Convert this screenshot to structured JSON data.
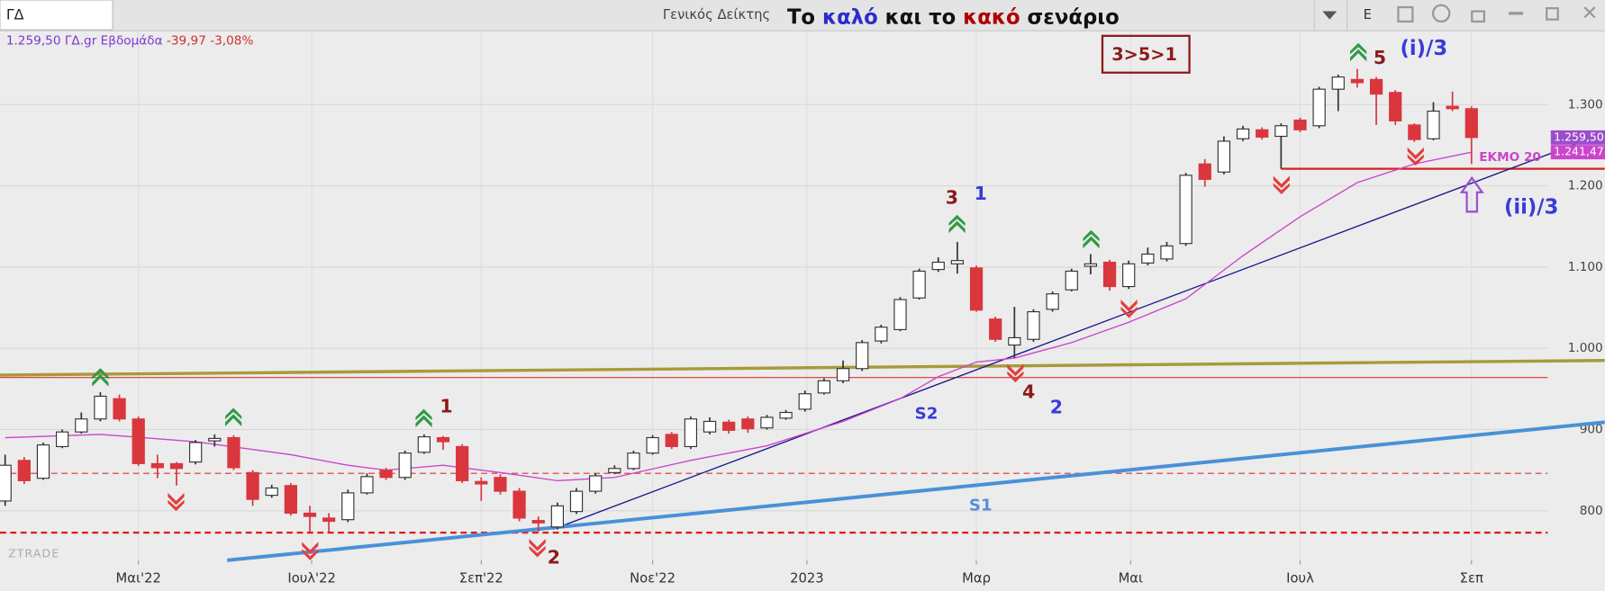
{
  "header": {
    "symbol": "ΓΔ",
    "name": "Γενικός Δείκτης",
    "button": "E"
  },
  "watermark": "ZTRADE",
  "chart_data": {
    "type": "candlestick",
    "title_parts": [
      {
        "text": "Το ",
        "color": "#111111"
      },
      {
        "text": "καλό",
        "color": "#2b2bcc"
      },
      {
        "text": " και το ",
        "color": "#111111"
      },
      {
        "text": "κακό",
        "color": "#b00000"
      },
      {
        "text": " σενάριο",
        "color": "#111111"
      }
    ],
    "info": {
      "quote": "1.259,50 ΓΔ.gr Εβδομάδα",
      "change": "-39,97 -3,08%"
    },
    "x": [
      0,
      1,
      2,
      3,
      4,
      5,
      6,
      7,
      8,
      9,
      10,
      11,
      12,
      13,
      14,
      15,
      16,
      17,
      18,
      19,
      20,
      21,
      22,
      23,
      24,
      25,
      26,
      27,
      28,
      29,
      30,
      31,
      32,
      33,
      34,
      35,
      36,
      37,
      38,
      39,
      40,
      41,
      42,
      43,
      44,
      45,
      46,
      47,
      48,
      49,
      50,
      51,
      52,
      53,
      54,
      55,
      56,
      57,
      58,
      59,
      60,
      61,
      62,
      63,
      64,
      65,
      66,
      67,
      68,
      69,
      70,
      71,
      72,
      73,
      74,
      75,
      76,
      77
    ],
    "open": [
      812,
      862,
      840,
      879,
      897,
      913,
      938,
      913,
      858,
      858,
      860,
      886,
      890,
      847,
      819,
      831,
      797,
      791,
      789,
      822,
      850,
      841,
      872,
      890,
      879,
      836,
      841,
      824,
      788,
      780,
      799,
      824,
      847,
      852,
      871,
      894,
      879,
      897,
      909,
      913,
      902,
      914,
      925,
      945,
      960,
      975,
      1009,
      1023,
      1062,
      1097,
      1104,
      1099,
      1036,
      1004,
      1011,
      1048,
      1072,
      1101,
      1106,
      1076,
      1105,
      1110,
      1129,
      1227,
      1217,
      1258,
      1269,
      1261,
      1281,
      1274,
      1319,
      1331,
      1331,
      1315,
      1275,
      1258,
      1298,
      1295
    ],
    "high": [
      869,
      866,
      884,
      900,
      921,
      946,
      943,
      916,
      869,
      860,
      887,
      894,
      893,
      850,
      832,
      834,
      806,
      797,
      826,
      846,
      853,
      874,
      894,
      892,
      882,
      841,
      845,
      828,
      793,
      810,
      828,
      846,
      856,
      874,
      893,
      897,
      916,
      915,
      912,
      916,
      918,
      924,
      948,
      963,
      985,
      1010,
      1029,
      1063,
      1098,
      1112,
      1131,
      1102,
      1039,
      1051,
      1048,
      1070,
      1098,
      1116,
      1109,
      1108,
      1124,
      1131,
      1216,
      1233,
      1261,
      1274,
      1272,
      1277,
      1284,
      1322,
      1337,
      1344,
      1334,
      1318,
      1277,
      1303,
      1316,
      1298
    ],
    "low": [
      806,
      833,
      838,
      877,
      895,
      910,
      910,
      855,
      840,
      831,
      857,
      879,
      850,
      806,
      816,
      794,
      774,
      774,
      786,
      820,
      838,
      838,
      870,
      875,
      834,
      812,
      820,
      787,
      774,
      777,
      796,
      821,
      845,
      850,
      869,
      876,
      876,
      894,
      895,
      896,
      900,
      912,
      922,
      943,
      957,
      972,
      1006,
      1021,
      1060,
      1094,
      1092,
      1045,
      1008,
      988,
      1008,
      1045,
      1070,
      1091,
      1071,
      1073,
      1102,
      1107,
      1126,
      1199,
      1214,
      1255,
      1257,
      1221,
      1266,
      1271,
      1292,
      1321,
      1275,
      1275,
      1254,
      1256,
      1292,
      1227
    ],
    "close": [
      856,
      837,
      881,
      897,
      913,
      941,
      913,
      858,
      853,
      852,
      884,
      889,
      853,
      814,
      828,
      797,
      793,
      787,
      822,
      842,
      841,
      871,
      891,
      885,
      837,
      833,
      824,
      791,
      785,
      806,
      824,
      843,
      852,
      871,
      890,
      879,
      913,
      910,
      899,
      901,
      915,
      921,
      944,
      960,
      975,
      1007,
      1026,
      1060,
      1095,
      1106,
      1108,
      1047,
      1011,
      1013,
      1045,
      1067,
      1095,
      1104,
      1076,
      1104,
      1116,
      1126,
      1213,
      1208,
      1255,
      1270,
      1260,
      1274,
      1269,
      1319,
      1334,
      1327,
      1313,
      1280,
      1257,
      1292,
      1295,
      1259.5
    ],
    "close_label": "1.259,50",
    "up_color": "#ffffff",
    "down_color": "#d9363e",
    "outline_color": "#333333",
    "series": [
      {
        "name": "ΕΚΜΟ 20",
        "color": "#cc44cc",
        "x": [
          0,
          5,
          10,
          15,
          18,
          20,
          23,
          26,
          29,
          32,
          36,
          40,
          44,
          47,
          49,
          51,
          53,
          56,
          59,
          62,
          65,
          68,
          71,
          74,
          77
        ],
        "values": [
          890,
          894,
          885,
          869,
          856,
          850,
          856,
          847,
          837,
          841,
          862,
          880,
          910,
          938,
          965,
          983,
          988,
          1007,
          1032,
          1061,
          1114,
          1162,
          1204,
          1227,
          1241.47
        ],
        "last_label": "1.241,47"
      }
    ],
    "lines": [
      {
        "color": "#a89a3a",
        "width": 3,
        "dashed": false,
        "x": [
          -0.27,
          84
        ],
        "values": [
          967,
          985
        ]
      },
      {
        "color": "#e03030",
        "width": 1,
        "dashed": false,
        "x": [
          -0.27,
          81
        ],
        "values": [
          964,
          964
        ]
      },
      {
        "color": "#e03030",
        "width": 1,
        "dashed": true,
        "x": [
          -0.27,
          81
        ],
        "values": [
          846,
          846
        ]
      },
      {
        "color": "#e01818",
        "width": 2,
        "dashed": true,
        "x": [
          -0.27,
          81
        ],
        "values": [
          773,
          773
        ]
      },
      {
        "color": "#d62020",
        "width": 2,
        "dashed": false,
        "x": [
          67,
          84
        ],
        "values": [
          1221,
          1221
        ]
      },
      {
        "color": "#1a1a8c",
        "width": 1.2,
        "dashed": false,
        "x": [
          28.75,
          84
        ],
        "values": [
          777,
          1265
        ]
      },
      {
        "color": "#4a90d9",
        "width": 3.5,
        "dashed": false,
        "x": [
          11.66,
          84
        ],
        "values": [
          739,
          909
        ]
      }
    ],
    "annotations": [
      {
        "text": "1",
        "color": "#8b1a1a"
      },
      {
        "text": "2",
        "color": "#8b1a1a"
      },
      {
        "text": "3",
        "color": "#8b1a1a"
      },
      {
        "text": "1",
        "color": "#3a3adb"
      },
      {
        "text": "4",
        "color": "#8b1a1a"
      },
      {
        "text": "2",
        "color": "#3a3adb"
      },
      {
        "text": "5",
        "color": "#8b1a1a"
      },
      {
        "text": "(i)/3",
        "color": "#3a3adb"
      },
      {
        "text": "(ii)/3",
        "color": "#3a3adb"
      },
      {
        "text": "S2",
        "color": "#3a3adb"
      },
      {
        "text": "S1",
        "color": "#5b8fd6"
      },
      {
        "text": "3>5>1",
        "color": "#8b1a1a"
      }
    ],
    "xlim": [
      -0.27,
      81
    ],
    "ylim": [
      739,
      1391
    ],
    "xticks": [
      {
        "value": 7,
        "label": "Μαι'22"
      },
      {
        "value": 16.1,
        "label": "Ιουλ'22"
      },
      {
        "value": 25,
        "label": "Σεπ'22"
      },
      {
        "value": 34,
        "label": "Νοε'22"
      },
      {
        "value": 42.1,
        "label": "2023"
      },
      {
        "value": 51,
        "label": "Μαρ"
      },
      {
        "value": 59.1,
        "label": "Μαι"
      },
      {
        "value": 68,
        "label": "Ιουλ"
      },
      {
        "value": 77,
        "label": "Σεπ"
      }
    ],
    "yticks": [
      {
        "value": 800,
        "label": "800"
      },
      {
        "value": 900,
        "label": "900"
      },
      {
        "value": 1000,
        "label": "1.000"
      },
      {
        "value": 1100,
        "label": "1.100"
      },
      {
        "value": 1200,
        "label": "1.200"
      },
      {
        "value": 1300,
        "label": "1.300"
      }
    ],
    "grid": true
  }
}
